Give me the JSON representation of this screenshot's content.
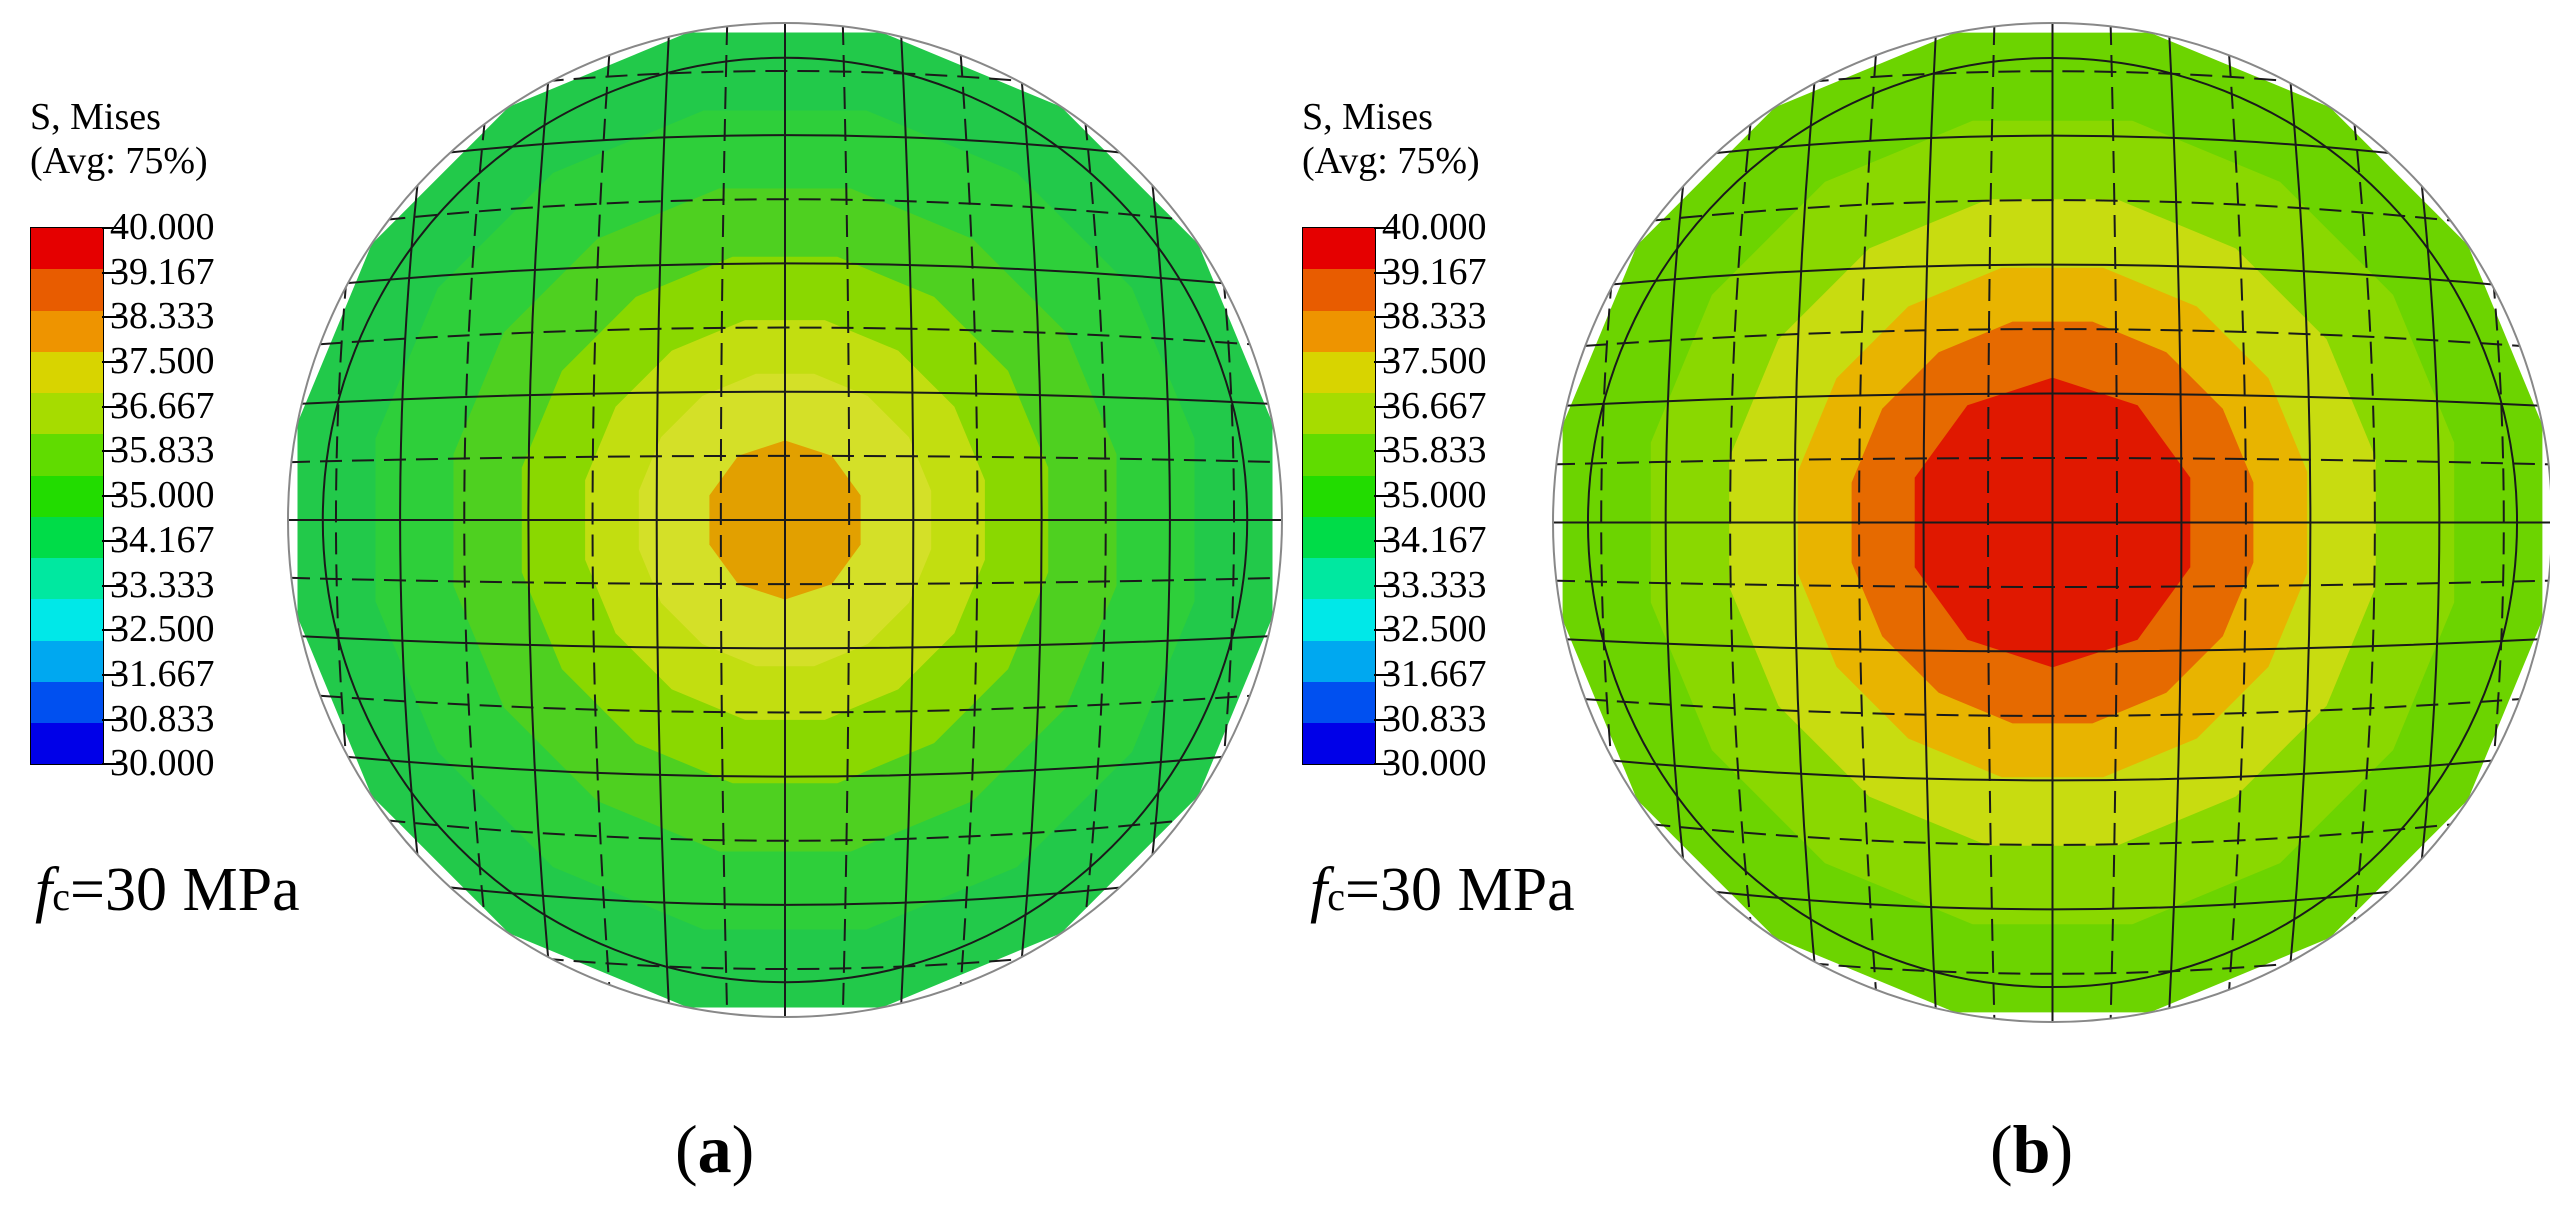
{
  "panels": [
    {
      "id": "a",
      "legend_title_1": "S, Mises",
      "legend_title_2": "(Avg: 75%)",
      "ticks": [
        "40.000",
        "39.167",
        "38.333",
        "37.500",
        "36.667",
        "35.833",
        "35.000",
        "34.167",
        "33.333",
        "32.500",
        "31.667",
        "30.833",
        "30.000"
      ],
      "note_f": "f",
      "note_sub": "c",
      "note_value": "=30 MPa",
      "label_open": "(",
      "label_letter": "a",
      "label_close": ")",
      "rings": [
        "#22c94a",
        "#2ecf3a",
        "#4ed020",
        "#8ad800",
        "#c2de10",
        "#d4e028",
        "#e2a000"
      ]
    },
    {
      "id": "b",
      "legend_title_1": "S, Mises",
      "legend_title_2": "(Avg: 75%)",
      "ticks": [
        "40.000",
        "39.167",
        "38.333",
        "37.500",
        "36.667",
        "35.833",
        "35.000",
        "34.167",
        "33.333",
        "32.500",
        "31.667",
        "30.833",
        "30.000"
      ],
      "note_f": "f",
      "note_sub": "c",
      "note_value": "=30 MPa",
      "label_open": "(",
      "label_letter": "b",
      "label_close": ")",
      "rings": [
        "#6cd400",
        "#8ad800",
        "#c8dc10",
        "#e8b400",
        "#e66a00",
        "#e01800"
      ]
    }
  ],
  "colorbar_colors": [
    "#e50000",
    "#e85c00",
    "#ee9400",
    "#d8d400",
    "#a6dc00",
    "#60dc00",
    "#22dc00",
    "#00dc48",
    "#00e8a0",
    "#00e8e8",
    "#00a8f0",
    "#0050f0",
    "#0000e8"
  ]
}
